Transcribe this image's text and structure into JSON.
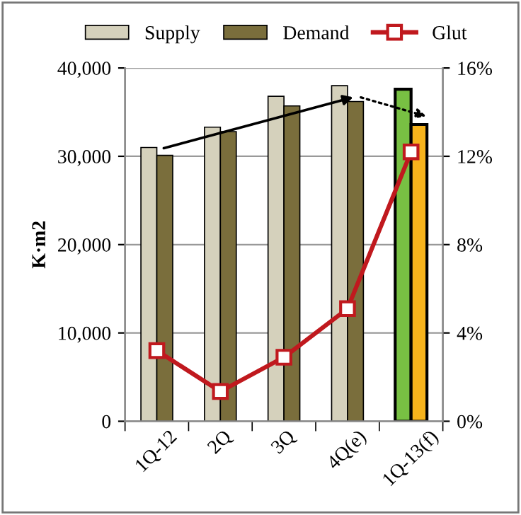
{
  "chart_data": {
    "type": "bar",
    "ylabel": "K·m2",
    "categories": [
      "1Q-12",
      "2Q",
      "3Q",
      "4Q(e)",
      "1Q-13(f)"
    ],
    "series": [
      {
        "name": "Supply",
        "color": "#d5d1bc",
        "colors": [
          "#d5d1bc",
          "#d5d1bc",
          "#d5d1bc",
          "#d5d1bc",
          "#78c043"
        ],
        "values": [
          31000,
          33300,
          36800,
          38000,
          37600
        ]
      },
      {
        "name": "Demand",
        "color": "#7a6e3c",
        "colors": [
          "#7a6e3c",
          "#7a6e3c",
          "#7a6e3c",
          "#7a6e3c",
          "#f6b31c"
        ],
        "values": [
          30100,
          32800,
          35700,
          36200,
          33600
        ]
      },
      {
        "name": "Glut",
        "type": "line",
        "axis": "y2",
        "color": "#c0191e",
        "marker": "square",
        "values": [
          3.2,
          1.35,
          2.9,
          5.1,
          12.2
        ]
      }
    ],
    "ylim": [
      0,
      40000
    ],
    "yticks": [
      {
        "value": 0,
        "label": "0"
      },
      {
        "value": 10000,
        "label": "10,000"
      },
      {
        "value": 20000,
        "label": "20,000"
      },
      {
        "value": 30000,
        "label": "30,000"
      },
      {
        "value": 40000,
        "label": "40,000"
      }
    ],
    "y2lim": [
      0,
      16
    ],
    "y2ticks": [
      {
        "value": 0,
        "label": "0%"
      },
      {
        "value": 4,
        "label": "4%"
      },
      {
        "value": 8,
        "label": "8%"
      },
      {
        "value": 12,
        "label": "12%"
      },
      {
        "value": 16,
        "label": "16%"
      }
    ],
    "grid": "y",
    "legend": "top"
  }
}
